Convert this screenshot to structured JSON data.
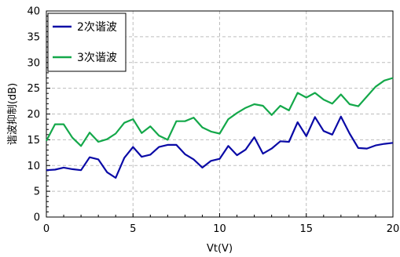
{
  "chart_data": {
    "type": "line",
    "xlabel": "Vt(V)",
    "ylabel": "谐波抑制(dB)",
    "xlim": [
      0,
      20
    ],
    "ylim": [
      0,
      40
    ],
    "xticks": [
      0,
      5,
      10,
      15,
      20
    ],
    "yticks": [
      0,
      5,
      10,
      15,
      20,
      25,
      30,
      35,
      40
    ],
    "grid": true,
    "legend_position": "top-left",
    "series": [
      {
        "name": "2次谐波",
        "color": "#0a0aa6",
        "x": [
          0,
          0.5,
          1,
          1.5,
          2,
          2.5,
          3,
          3.5,
          4,
          4.5,
          5,
          5.5,
          6,
          6.5,
          7,
          7.5,
          8,
          8.5,
          9,
          9.5,
          10,
          10.5,
          11,
          11.5,
          12,
          12.5,
          13,
          13.5,
          14,
          14.5,
          15,
          15.5,
          16,
          16.5,
          17,
          17.5,
          18,
          18.5,
          19,
          19.5,
          20
        ],
        "y": [
          9.1,
          9.2,
          9.6,
          9.3,
          9.1,
          11.6,
          11.2,
          8.7,
          7.6,
          11.5,
          13.6,
          11.7,
          12.1,
          13.6,
          14.0,
          14.0,
          12.2,
          11.2,
          9.6,
          10.9,
          11.3,
          13.8,
          12.0,
          13.1,
          15.5,
          12.3,
          13.3,
          14.7,
          14.6,
          18.4,
          15.7,
          19.4,
          16.7,
          16.0,
          19.5,
          16.2,
          13.4,
          13.3,
          13.9,
          14.2,
          14.4
        ]
      },
      {
        "name": "3次谐波",
        "color": "#14a84a",
        "x": [
          0,
          0.5,
          1,
          1.5,
          2,
          2.5,
          3,
          3.5,
          4,
          4.5,
          5,
          5.5,
          6,
          6.5,
          7,
          7.5,
          8,
          8.5,
          9,
          9.5,
          10,
          10.5,
          11,
          11.5,
          12,
          12.5,
          13,
          13.5,
          14,
          14.5,
          15,
          15.5,
          16,
          16.5,
          17,
          17.5,
          18,
          18.5,
          19,
          19.5,
          20
        ],
        "y": [
          14.8,
          18.0,
          18.0,
          15.4,
          13.8,
          16.4,
          14.6,
          15.1,
          16.2,
          18.3,
          19.0,
          16.3,
          17.6,
          15.8,
          15.0,
          18.6,
          18.6,
          19.3,
          17.4,
          16.6,
          16.2,
          19.0,
          20.2,
          21.2,
          21.9,
          21.6,
          19.8,
          21.6,
          20.7,
          24.1,
          23.2,
          24.1,
          22.8,
          22.0,
          23.8,
          21.9,
          21.5,
          23.4,
          25.3,
          26.5,
          27.0
        ]
      }
    ]
  }
}
